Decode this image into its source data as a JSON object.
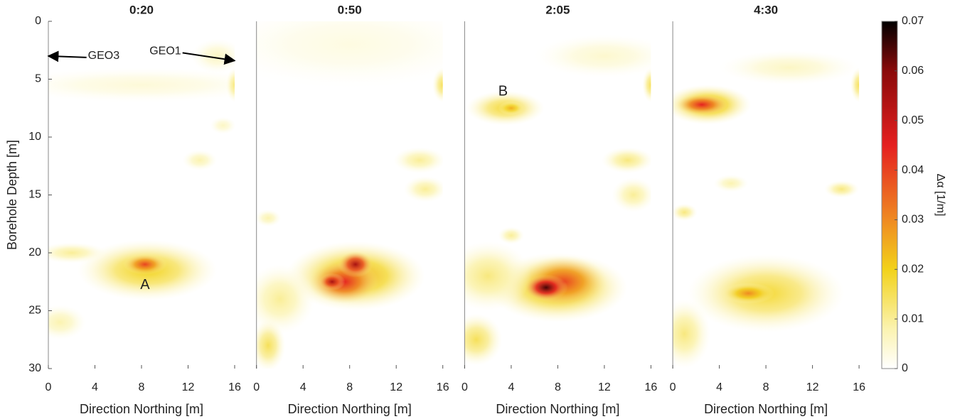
{
  "chart_data": [
    {
      "type": "heatmap",
      "title": "0:20",
      "xlabel": "Direction Northing [m]",
      "ylabel": "Borehole Depth [m]",
      "xlim": [
        0,
        16
      ],
      "ylim": [
        0,
        30
      ],
      "y_inverted": true,
      "xticks": [
        0,
        4,
        8,
        12,
        16
      ],
      "yticks": [
        0,
        5,
        10,
        15,
        20,
        25,
        30
      ],
      "blobs": [
        {
          "x": 8,
          "y": 5.5,
          "w": 16,
          "h": 2,
          "value": 0.004
        },
        {
          "x": 14.5,
          "y": 3,
          "w": 3,
          "h": 2,
          "value": 0.006
        },
        {
          "x": 16,
          "y": 5.5,
          "w": 1,
          "h": 2,
          "value": 0.012
        },
        {
          "x": 8.5,
          "y": 21.5,
          "w": 8,
          "h": 3.5,
          "value": 0.02
        },
        {
          "x": 8.3,
          "y": 21,
          "w": 2.5,
          "h": 1.2,
          "value": 0.04
        },
        {
          "x": 1,
          "y": 26,
          "w": 3,
          "h": 2,
          "value": 0.008
        },
        {
          "x": 2,
          "y": 20,
          "w": 4,
          "h": 1.2,
          "value": 0.01
        },
        {
          "x": 13,
          "y": 12,
          "w": 2,
          "h": 1.2,
          "value": 0.008
        },
        {
          "x": 15,
          "y": 9,
          "w": 1.5,
          "h": 1,
          "value": 0.006
        }
      ],
      "annotations": [
        {
          "text": "GEO3",
          "x": 3.4,
          "y": 3,
          "arrow_x": 0,
          "arrow_y": 3
        },
        {
          "text": "GEO1",
          "x": 11.4,
          "y": 2.6,
          "arrow_x": 16,
          "arrow_y": 3.4
        },
        {
          "text": "A",
          "x": 8.3,
          "y": 22.8
        }
      ]
    },
    {
      "type": "heatmap",
      "title": "0:50",
      "xlabel": "Direction Northing [m]",
      "xlim": [
        0,
        16
      ],
      "ylim": [
        0,
        30
      ],
      "y_inverted": true,
      "xticks": [
        0,
        4,
        8,
        12,
        16
      ],
      "blobs": [
        {
          "x": 8,
          "y": 2,
          "w": 16,
          "h": 5,
          "value": 0.003
        },
        {
          "x": 16,
          "y": 5.5,
          "w": 1.2,
          "h": 2,
          "value": 0.015
        },
        {
          "x": 8.5,
          "y": 22,
          "w": 8,
          "h": 4,
          "value": 0.025
        },
        {
          "x": 7.5,
          "y": 22.5,
          "w": 4,
          "h": 2.5,
          "value": 0.045
        },
        {
          "x": 8.5,
          "y": 21,
          "w": 2,
          "h": 1.5,
          "value": 0.055
        },
        {
          "x": 6.5,
          "y": 22.5,
          "w": 1.5,
          "h": 1,
          "value": 0.055
        },
        {
          "x": 2,
          "y": 24,
          "w": 4,
          "h": 4,
          "value": 0.01
        },
        {
          "x": 1,
          "y": 28,
          "w": 2,
          "h": 3,
          "value": 0.015
        },
        {
          "x": 14,
          "y": 12,
          "w": 3,
          "h": 1.5,
          "value": 0.01
        },
        {
          "x": 14.5,
          "y": 14.5,
          "w": 2.5,
          "h": 1.5,
          "value": 0.01
        },
        {
          "x": 1,
          "y": 17,
          "w": 1.5,
          "h": 1,
          "value": 0.008
        }
      ]
    },
    {
      "type": "heatmap",
      "title": "2:05",
      "xlabel": "Direction Northing [m]",
      "xlim": [
        0,
        16
      ],
      "ylim": [
        0,
        30
      ],
      "y_inverted": true,
      "xticks": [
        0,
        4,
        8,
        12,
        16
      ],
      "blobs": [
        {
          "x": 12,
          "y": 3,
          "w": 8,
          "h": 2.5,
          "value": 0.005
        },
        {
          "x": 3.5,
          "y": 7.5,
          "w": 4.5,
          "h": 2,
          "value": 0.018
        },
        {
          "x": 4,
          "y": 7.5,
          "w": 1.5,
          "h": 0.8,
          "value": 0.025
        },
        {
          "x": 16,
          "y": 5.5,
          "w": 1,
          "h": 2,
          "value": 0.015
        },
        {
          "x": 8,
          "y": 23,
          "w": 8,
          "h": 4,
          "value": 0.025
        },
        {
          "x": 8.5,
          "y": 22.5,
          "w": 5,
          "h": 3,
          "value": 0.04
        },
        {
          "x": 7,
          "y": 23,
          "w": 2.5,
          "h": 1.5,
          "value": 0.065
        },
        {
          "x": 2,
          "y": 22,
          "w": 5,
          "h": 4,
          "value": 0.012
        },
        {
          "x": 1,
          "y": 27.5,
          "w": 3,
          "h": 3,
          "value": 0.015
        },
        {
          "x": 14,
          "y": 12,
          "w": 3,
          "h": 1.5,
          "value": 0.012
        },
        {
          "x": 14.5,
          "y": 15,
          "w": 2.5,
          "h": 2,
          "value": 0.01
        },
        {
          "x": 4,
          "y": 18.5,
          "w": 1.5,
          "h": 1,
          "value": 0.01
        }
      ],
      "annotations": [
        {
          "text": "B",
          "x": 3.3,
          "y": 6.1
        }
      ]
    },
    {
      "type": "heatmap",
      "title": "4:30",
      "xlabel": "Direction Northing [m]",
      "xlim": [
        0,
        16
      ],
      "ylim": [
        0,
        30
      ],
      "y_inverted": true,
      "xticks": [
        0,
        4,
        8,
        12,
        16
      ],
      "blobs": [
        {
          "x": 10,
          "y": 4,
          "w": 8,
          "h": 2,
          "value": 0.006
        },
        {
          "x": 3,
          "y": 7.2,
          "w": 5,
          "h": 2.3,
          "value": 0.025
        },
        {
          "x": 2.5,
          "y": 7.2,
          "w": 3,
          "h": 1.2,
          "value": 0.045
        },
        {
          "x": 16,
          "y": 5.5,
          "w": 1,
          "h": 2,
          "value": 0.015
        },
        {
          "x": 8,
          "y": 23.5,
          "w": 9,
          "h": 4.5,
          "value": 0.018
        },
        {
          "x": 6.5,
          "y": 23.5,
          "w": 3,
          "h": 1.2,
          "value": 0.03
        },
        {
          "x": 1,
          "y": 27,
          "w": 3,
          "h": 4,
          "value": 0.012
        },
        {
          "x": 14.5,
          "y": 14.5,
          "w": 2,
          "h": 1,
          "value": 0.012
        },
        {
          "x": 5,
          "y": 14,
          "w": 2,
          "h": 1,
          "value": 0.008
        },
        {
          "x": 1,
          "y": 16.5,
          "w": 1.5,
          "h": 1,
          "value": 0.012
        }
      ]
    },
    {
      "type": "colorbar",
      "label": "Δα [1/m]",
      "clim": [
        0,
        0.07
      ],
      "ticks": [
        0,
        0.01,
        0.02,
        0.03,
        0.04,
        0.05,
        0.06,
        0.07
      ],
      "colormap": [
        {
          "value": 0,
          "color": "#ffffff"
        },
        {
          "value": 0.008,
          "color": "#fbf3b0"
        },
        {
          "value": 0.02,
          "color": "#f2d21a"
        },
        {
          "value": 0.03,
          "color": "#ef8a22"
        },
        {
          "value": 0.045,
          "color": "#e52020"
        },
        {
          "value": 0.06,
          "color": "#8a0a0a"
        },
        {
          "value": 0.07,
          "color": "#000000"
        }
      ]
    }
  ]
}
